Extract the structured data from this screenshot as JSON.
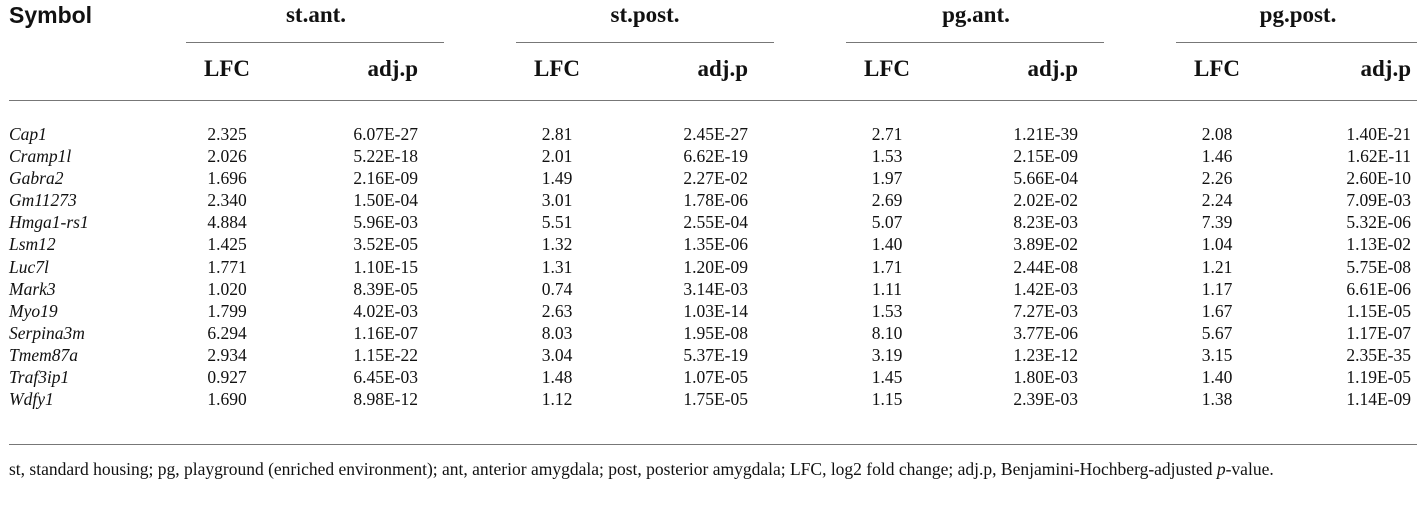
{
  "header": {
    "symbol": "Symbol",
    "groups": [
      "st.ant.",
      "st.post.",
      "pg.ant.",
      "pg.post."
    ],
    "lfc": "LFC",
    "adjp": "adj.p"
  },
  "rows": [
    {
      "symbol": "Cap1",
      "v": [
        "2.325",
        "6.07E-27",
        "2.81",
        "2.45E-27",
        "2.71",
        "1.21E-39",
        "2.08",
        "1.40E-21"
      ]
    },
    {
      "symbol": "Cramp1l",
      "v": [
        "2.026",
        "5.22E-18",
        "2.01",
        "6.62E-19",
        "1.53",
        "2.15E-09",
        "1.46",
        "1.62E-11"
      ]
    },
    {
      "symbol": "Gabra2",
      "v": [
        "1.696",
        "2.16E-09",
        "1.49",
        "2.27E-02",
        "1.97",
        "5.66E-04",
        "2.26",
        "2.60E-10"
      ]
    },
    {
      "symbol": "Gm11273",
      "v": [
        "2.340",
        "1.50E-04",
        "3.01",
        "1.78E-06",
        "2.69",
        "2.02E-02",
        "2.24",
        "7.09E-03"
      ]
    },
    {
      "symbol": "Hmga1-rs1",
      "v": [
        "4.884",
        "5.96E-03",
        "5.51",
        "2.55E-04",
        "5.07",
        "8.23E-03",
        "7.39",
        "5.32E-06"
      ]
    },
    {
      "symbol": "Lsm12",
      "v": [
        "1.425",
        "3.52E-05",
        "1.32",
        "1.35E-06",
        "1.40",
        "3.89E-02",
        "1.04",
        "1.13E-02"
      ]
    },
    {
      "symbol": "Luc7l",
      "v": [
        "1.771",
        "1.10E-15",
        "1.31",
        "1.20E-09",
        "1.71",
        "2.44E-08",
        "1.21",
        "5.75E-08"
      ]
    },
    {
      "symbol": "Mark3",
      "v": [
        "1.020",
        "8.39E-05",
        "0.74",
        "3.14E-03",
        "1.11",
        "1.42E-03",
        "1.17",
        "6.61E-06"
      ]
    },
    {
      "symbol": "Myo19",
      "v": [
        "1.799",
        "4.02E-03",
        "2.63",
        "1.03E-14",
        "1.53",
        "7.27E-03",
        "1.67",
        "1.15E-05"
      ]
    },
    {
      "symbol": "Serpina3m",
      "v": [
        "6.294",
        "1.16E-07",
        "8.03",
        "1.95E-08",
        "8.10",
        "3.77E-06",
        "5.67",
        "1.17E-07"
      ]
    },
    {
      "symbol": "Tmem87a",
      "v": [
        "2.934",
        "1.15E-22",
        "3.04",
        "5.37E-19",
        "3.19",
        "1.23E-12",
        "3.15",
        "2.35E-35"
      ]
    },
    {
      "symbol": "Traf3ip1",
      "v": [
        "0.927",
        "6.45E-03",
        "1.48",
        "1.07E-05",
        "1.45",
        "1.80E-03",
        "1.40",
        "1.19E-05"
      ]
    },
    {
      "symbol": "Wdfy1",
      "v": [
        "1.690",
        "8.98E-12",
        "1.12",
        "1.75E-05",
        "1.15",
        "2.39E-03",
        "1.38",
        "1.14E-09"
      ]
    }
  ],
  "footnote": {
    "text": "st, standard housing; pg, playground (enriched environment); ant, anterior amygdala; post, posterior amygdala; LFC, log2 fold change; adj.p, Benjamini-Hochberg-adjusted ",
    "p": "p",
    "tail": "-value."
  }
}
